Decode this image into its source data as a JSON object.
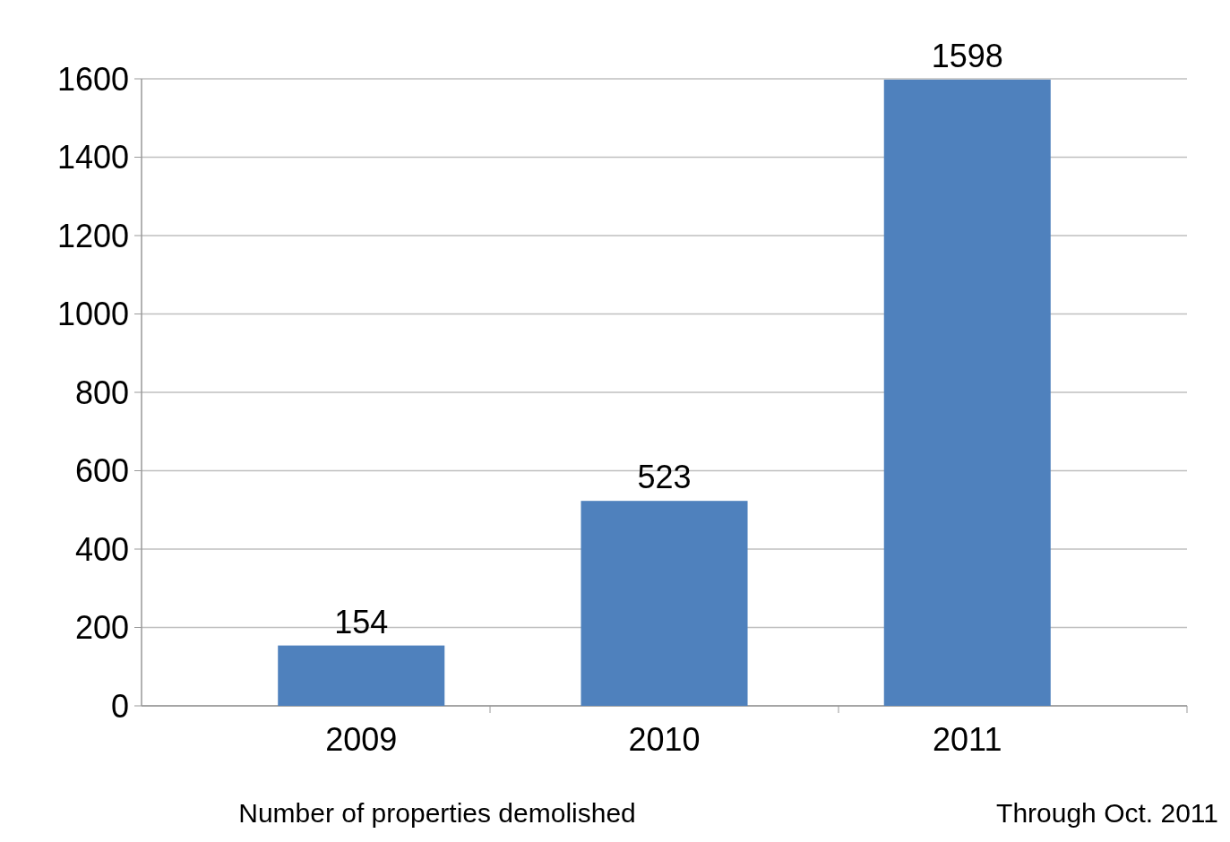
{
  "chart_data": {
    "type": "bar",
    "categories": [
      "2009",
      "2010",
      "2011"
    ],
    "values": [
      154,
      523,
      1598
    ],
    "color": "#4f81bd",
    "ylim": [
      0,
      1600
    ],
    "yticks": [
      0,
      200,
      400,
      600,
      800,
      1000,
      1200,
      1400,
      1600
    ],
    "grid": "y",
    "data_labels": true,
    "xlabel": "Number of properties demolished",
    "annotations": [
      "Through Oct. 2011"
    ]
  }
}
